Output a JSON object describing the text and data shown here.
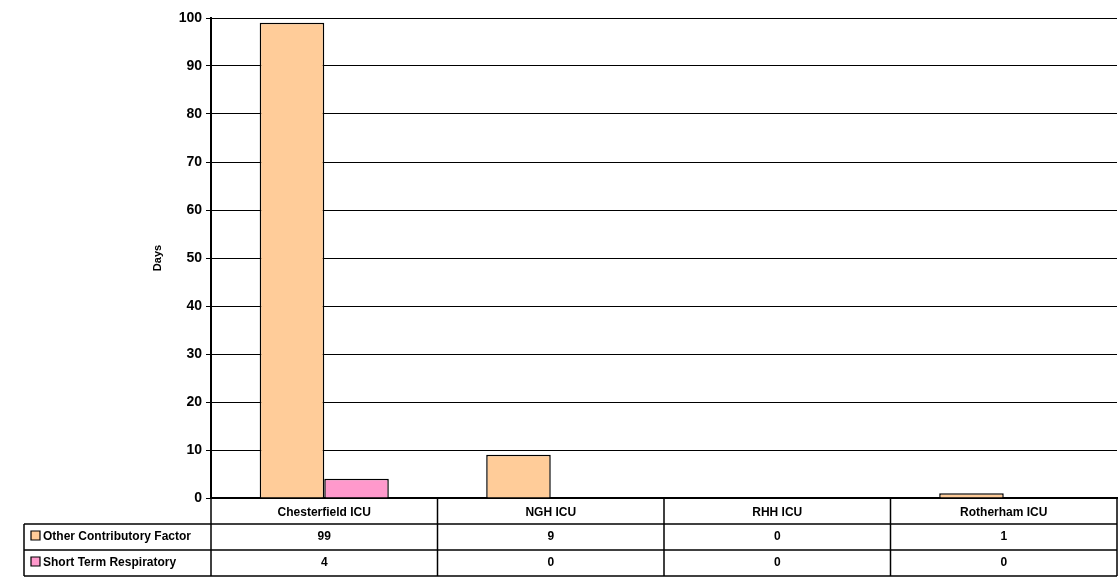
{
  "chart_data": {
    "type": "bar",
    "ylabel": "Days",
    "categories": [
      "Chesterfield ICU",
      "NGH ICU",
      "RHH ICU",
      "Rotherham ICU"
    ],
    "series": [
      {
        "name": "Other Contributory Factor",
        "color": "#ffcc99",
        "values": [
          99,
          9,
          0,
          1
        ]
      },
      {
        "name": "Short Term Respiratory",
        "color": "#ff99cc",
        "values": [
          4,
          0,
          0,
          0
        ]
      }
    ],
    "ylim": [
      0,
      100
    ],
    "yticks": [
      0,
      10,
      20,
      30,
      40,
      50,
      60,
      70,
      80,
      90,
      100
    ],
    "grid": "y",
    "legend": "bottom left",
    "data_labels": true
  }
}
